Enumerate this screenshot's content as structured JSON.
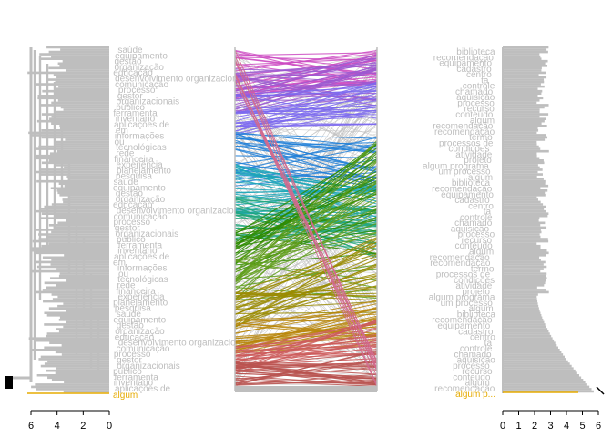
{
  "chart_data": {
    "type": "tanglegram",
    "left_axis": {
      "ticks": [
        6,
        4,
        2,
        0
      ]
    },
    "right_axis": {
      "ticks": [
        0,
        1,
        2,
        3,
        4,
        5,
        6
      ]
    },
    "left_labels": [
      "saúde",
      "equipamento",
      "gestão",
      "organização",
      "educação",
      "desenvolvimento organizacional",
      "comunicação",
      "processo",
      "gestor",
      "organizacionais",
      "público",
      "ferramenta",
      "inventário",
      "aplicações de",
      "em",
      "informações",
      "ou",
      "tecnológicas",
      "rede",
      "financeira",
      "experiência",
      "planejamento",
      "pesquisa"
    ],
    "right_labels": [
      "biblioteca",
      "recomendação",
      "equipamento",
      "cadastro",
      "centro",
      "ta",
      "controle",
      "chamado",
      "aquisição",
      "processo",
      "recurso",
      "conteúdo",
      "algum",
      "recomendação",
      "recomendação",
      "termo",
      "processos de",
      "condições",
      "atividade",
      "projeto",
      "algum programa",
      "um processo",
      "algum"
    ],
    "highlight_labels": {
      "left": "algum",
      "right": "algum p..."
    },
    "colors": {
      "grey": "#bebebe",
      "highlight": "#e6ab02",
      "clusters": [
        "#cc4bc2",
        "#9b59d0",
        "#7b68ee",
        "#1e7fd8",
        "#1aa6b7",
        "#20a67a",
        "#2e8b00",
        "#5f9e1a",
        "#9a8b00",
        "#b8860b",
        "#cd5c5c",
        "#b85450"
      ]
    }
  }
}
